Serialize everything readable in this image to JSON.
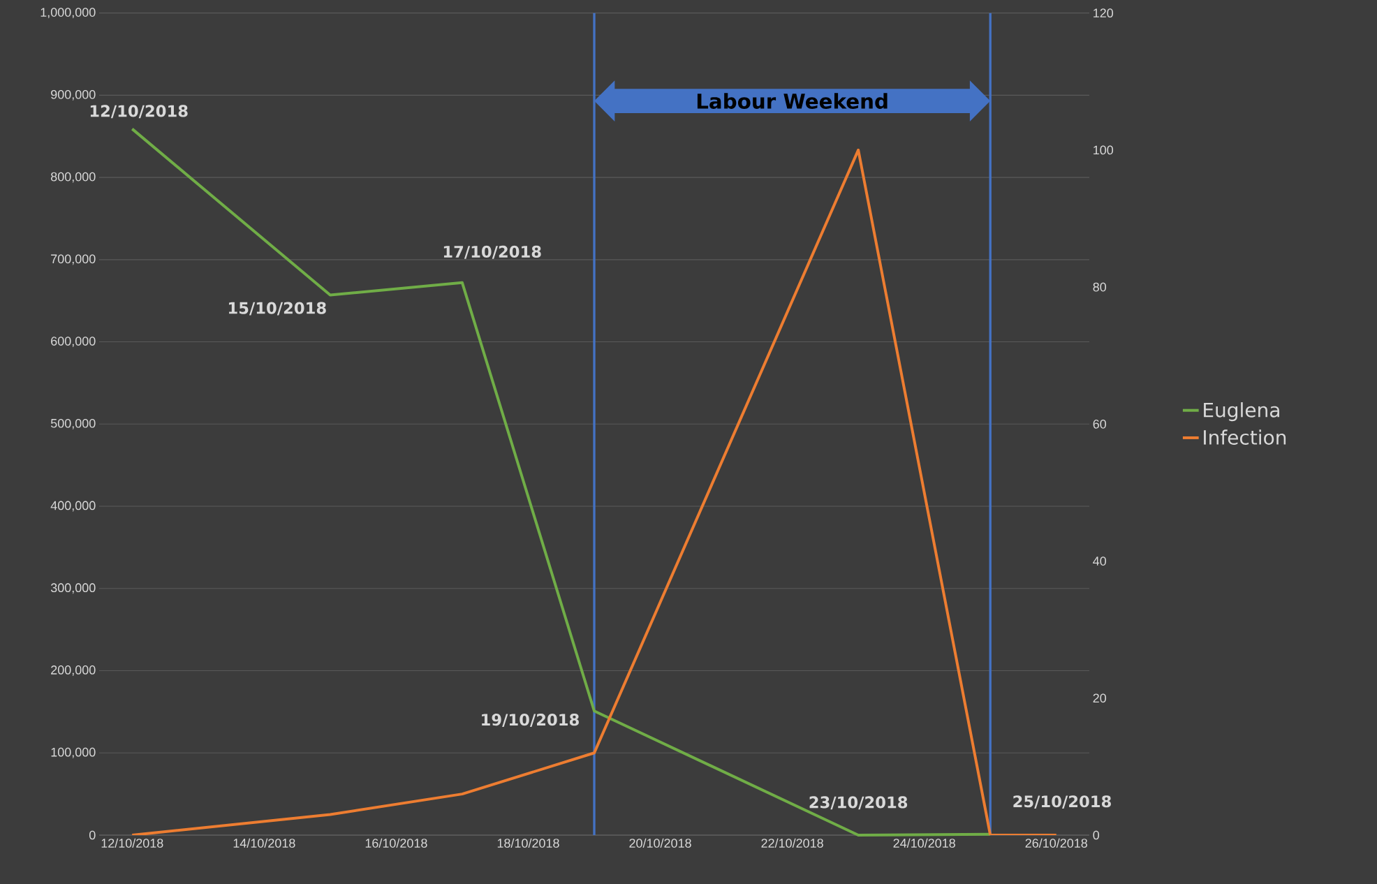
{
  "chart_data": {
    "type": "line",
    "series": [
      {
        "name": "Euglena",
        "color": "#70ad47",
        "x": [
          "2018-10-12",
          "2018-10-15",
          "2018-10-17",
          "2018-10-19",
          "2018-10-23",
          "2018-10-25"
        ],
        "values": [
          859000,
          657000,
          672000,
          151000,
          0,
          1000
        ]
      },
      {
        "name": "Infection",
        "color": "#ed7d31",
        "axis": "y2",
        "x": [
          "2018-10-12",
          "2018-10-15",
          "2018-10-17",
          "2018-10-19",
          "2018-10-23",
          "2018-10-25",
          "2018-10-26"
        ],
        "values": [
          0,
          3,
          6,
          12,
          100,
          0,
          0
        ]
      }
    ],
    "xlim": [
      "2018-10-11T12:00",
      "2018-10-26T12:00"
    ],
    "xticks": [
      {
        "value": "2018-10-12",
        "label": "12/10/2018"
      },
      {
        "value": "2018-10-14",
        "label": "14/10/2018"
      },
      {
        "value": "2018-10-16",
        "label": "16/10/2018"
      },
      {
        "value": "2018-10-18",
        "label": "18/10/2018"
      },
      {
        "value": "2018-10-20",
        "label": "20/10/2018"
      },
      {
        "value": "2018-10-22",
        "label": "22/10/2018"
      },
      {
        "value": "2018-10-24",
        "label": "24/10/2018"
      },
      {
        "value": "2018-10-26",
        "label": "26/10/2018"
      }
    ],
    "ylim": [
      0,
      1000000
    ],
    "yticks": [
      {
        "value": 0,
        "label": "0"
      },
      {
        "value": 100000,
        "label": "100,000"
      },
      {
        "value": 200000,
        "label": "200,000"
      },
      {
        "value": 300000,
        "label": "300,000"
      },
      {
        "value": 400000,
        "label": "400,000"
      },
      {
        "value": 500000,
        "label": "500,000"
      },
      {
        "value": 600000,
        "label": "600,000"
      },
      {
        "value": 700000,
        "label": "700,000"
      },
      {
        "value": 800000,
        "label": "800,000"
      },
      {
        "value": 900000,
        "label": "900,000"
      },
      {
        "value": 1000000,
        "label": "1,000,000"
      }
    ],
    "y2lim": [
      0,
      120
    ],
    "y2ticks": [
      0,
      20,
      40,
      60,
      80,
      100,
      120
    ],
    "grid": "y",
    "legend": "right",
    "ref_lines": [
      {
        "axis": "x",
        "value": "2018-10-19",
        "color": "#4472c4"
      },
      {
        "axis": "x",
        "value": "2018-10-25",
        "color": "#4472c4"
      }
    ],
    "annotations": [
      "Labour Weekend",
      {
        "text": "12/10/2018",
        "x": "2018-10-12",
        "y": 859000
      },
      {
        "text": "15/10/2018",
        "x": "2018-10-15",
        "y": 657000
      },
      {
        "text": "17/10/2018",
        "x": "2018-10-17",
        "y": 672000
      },
      {
        "text": "19/10/2018",
        "x": "2018-10-19",
        "y": 151000
      },
      {
        "text": "23/10/2018",
        "x": "2018-10-23",
        "y": 0
      },
      {
        "text": "25/10/2018",
        "x": "2018-10-25",
        "y": 1000
      }
    ]
  }
}
